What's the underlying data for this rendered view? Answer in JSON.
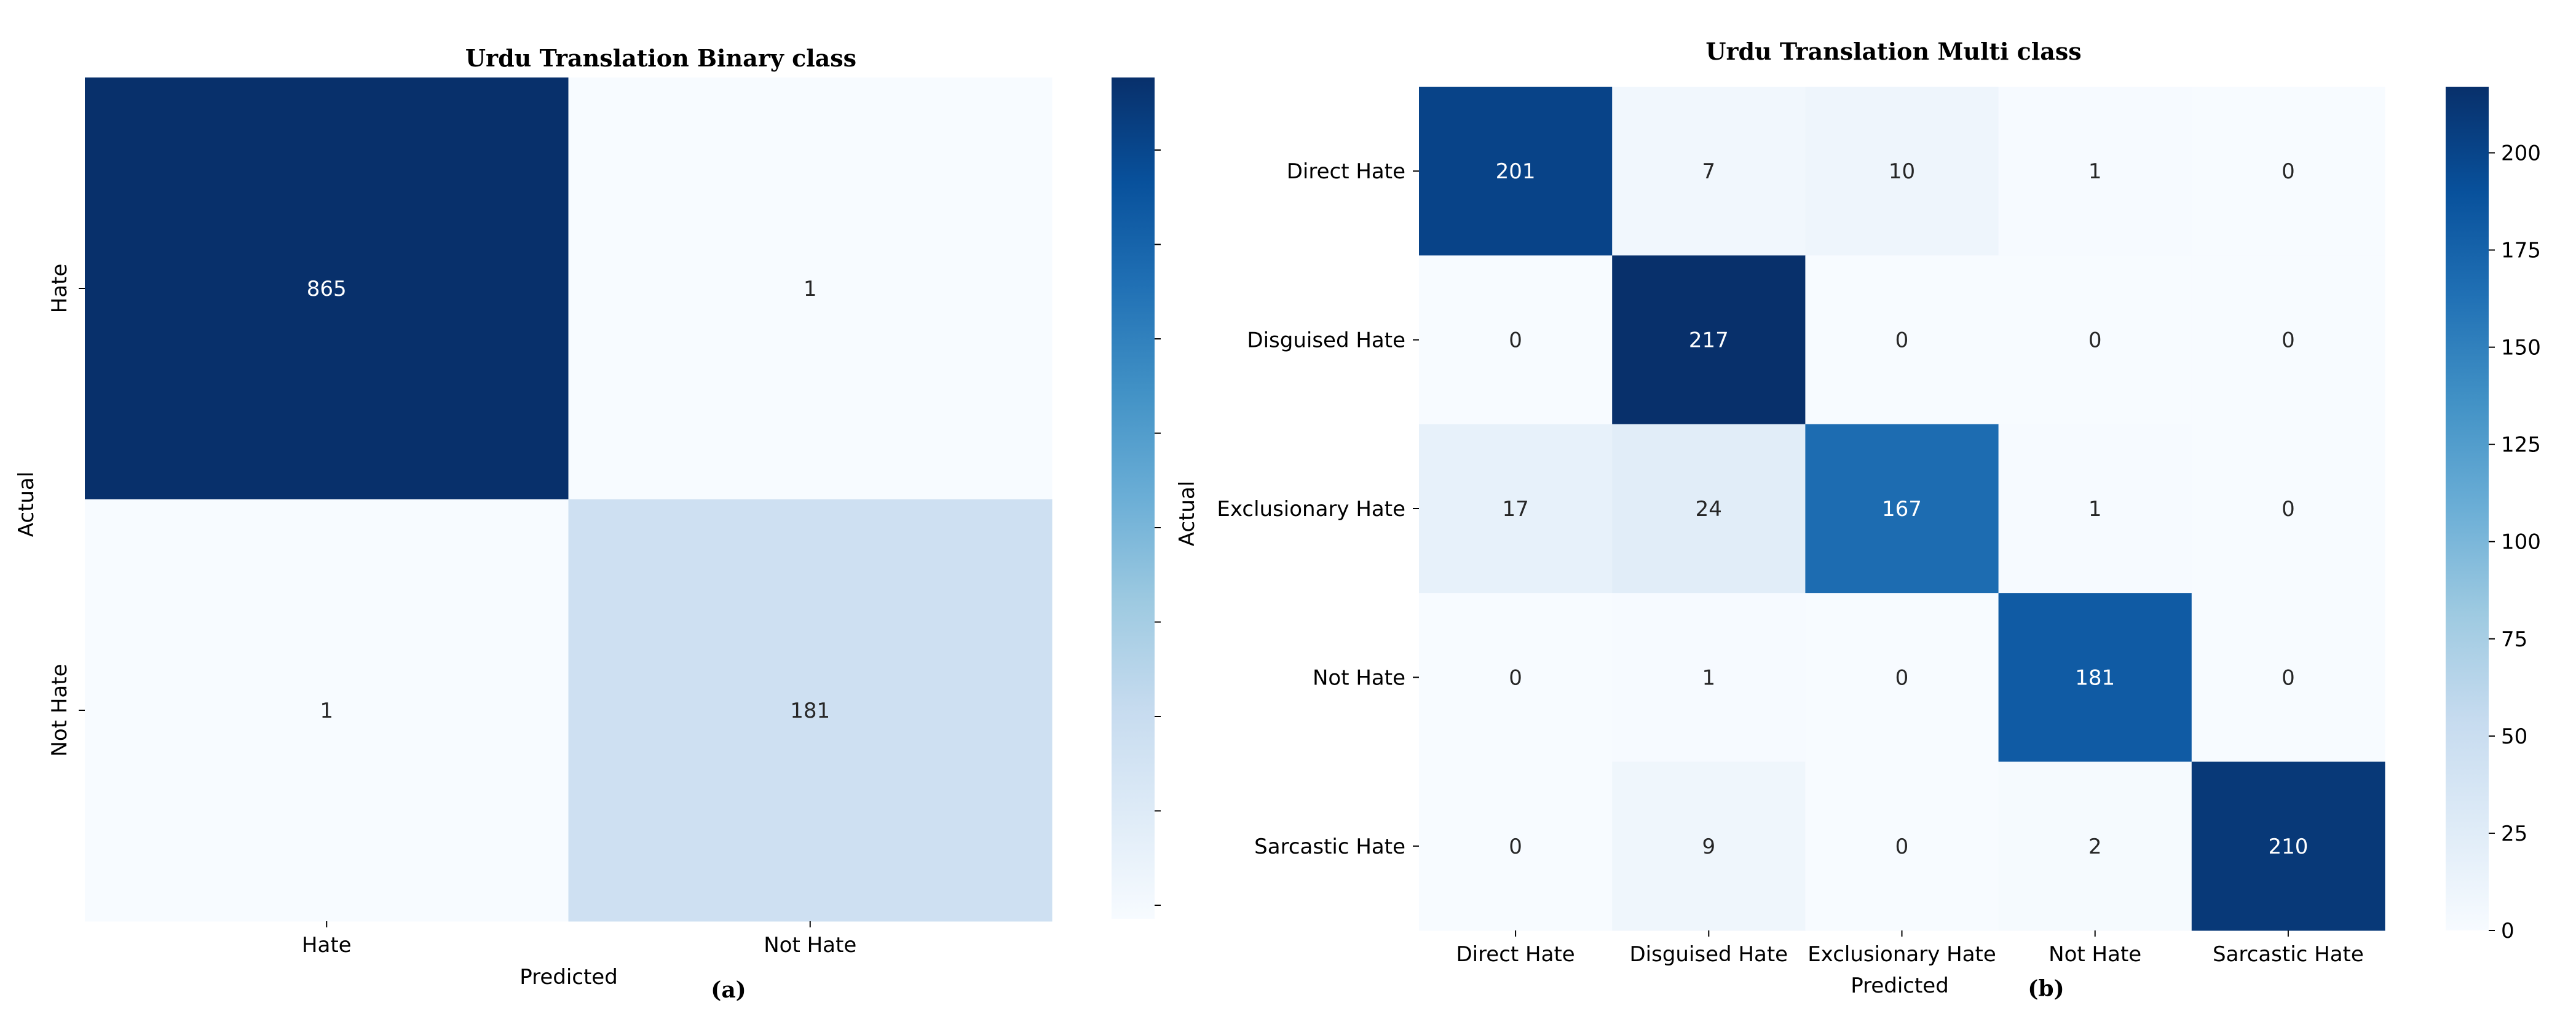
{
  "chart_data": [
    {
      "type": "heatmap",
      "title": "Urdu Translation  Binary class",
      "xlabel": "Predicted",
      "ylabel": "Actual",
      "caption": "(a)",
      "x_categories": [
        "Hate",
        "Not Hate"
      ],
      "y_categories": [
        "Hate",
        "Not Hate"
      ],
      "values": [
        [
          865,
          1
        ],
        [
          1,
          181
        ]
      ],
      "color_range": [
        0,
        865
      ],
      "colorbar_ticks": [],
      "colormap": "Blues",
      "colorbar_tick_marks": 9
    },
    {
      "type": "heatmap",
      "title": "Urdu Translation Multi class",
      "xlabel": "Predicted",
      "ylabel": "Actual",
      "caption": "(b)",
      "x_categories": [
        "Direct Hate",
        "Disguised Hate",
        "Exclusionary Hate",
        "Not Hate",
        "Sarcastic Hate"
      ],
      "y_categories": [
        "Direct Hate",
        "Disguised Hate",
        "Exclusionary Hate",
        "Not Hate",
        "Sarcastic Hate"
      ],
      "values": [
        [
          201,
          7,
          10,
          1,
          0
        ],
        [
          0,
          217,
          0,
          0,
          0
        ],
        [
          17,
          24,
          167,
          1,
          0
        ],
        [
          0,
          1,
          0,
          181,
          0
        ],
        [
          0,
          9,
          0,
          2,
          210
        ]
      ],
      "color_range": [
        0,
        217
      ],
      "colorbar_ticks": [
        0,
        25,
        50,
        75,
        100,
        125,
        150,
        175,
        200
      ],
      "colormap": "Blues"
    }
  ]
}
